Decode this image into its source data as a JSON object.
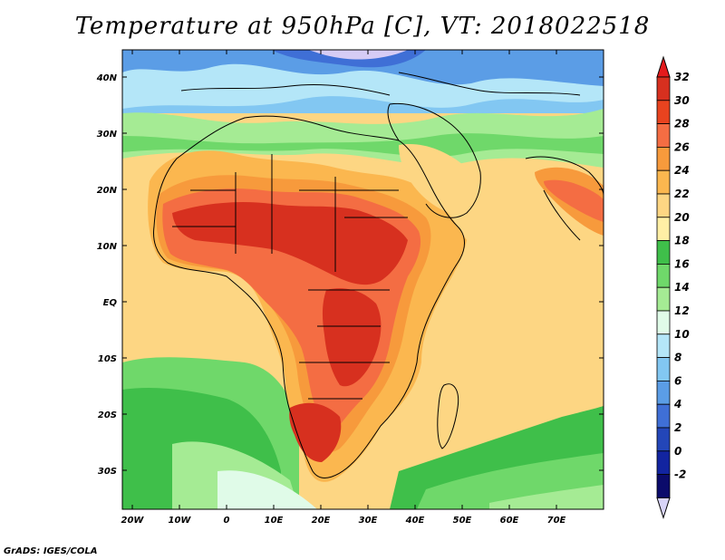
{
  "title": "Temperature at 950hPa [C], VT: 2018022518",
  "footer": "GrADS: IGES/COLA",
  "map": {
    "variable": "Temperature",
    "level": "950hPa",
    "units": "C",
    "valid_time": "2018022518",
    "lat_labels": [
      "40N",
      "30N",
      "20N",
      "10N",
      "EQ",
      "10S",
      "20S",
      "30S"
    ],
    "lon_labels": [
      "20W",
      "10W",
      "0",
      "10E",
      "20E",
      "30E",
      "40E",
      "50E",
      "60E",
      "70E"
    ]
  },
  "colorbar": {
    "labels": [
      "32",
      "30",
      "28",
      "26",
      "24",
      "22",
      "20",
      "18",
      "16",
      "14",
      "12",
      "10",
      "8",
      "6",
      "4",
      "2",
      "0",
      "-2"
    ],
    "colors": [
      "#8b0000",
      "#d7301f",
      "#f46d43",
      "#f79a3c",
      "#fbb74f",
      "#fdd683",
      "#ffefa5",
      "#3fbf4a",
      "#6fd86a",
      "#a5eb94",
      "#e0fbe8",
      "#b4e6f8",
      "#82c7f2",
      "#5b9de6",
      "#3f6fd6",
      "#2346b8",
      "#1224a0",
      "#0b0b6b",
      "#000063",
      "#d6ccf5"
    ],
    "top_arrow_color": "#e41a1c",
    "bottom_arrow_color": "#d8d4f8"
  }
}
